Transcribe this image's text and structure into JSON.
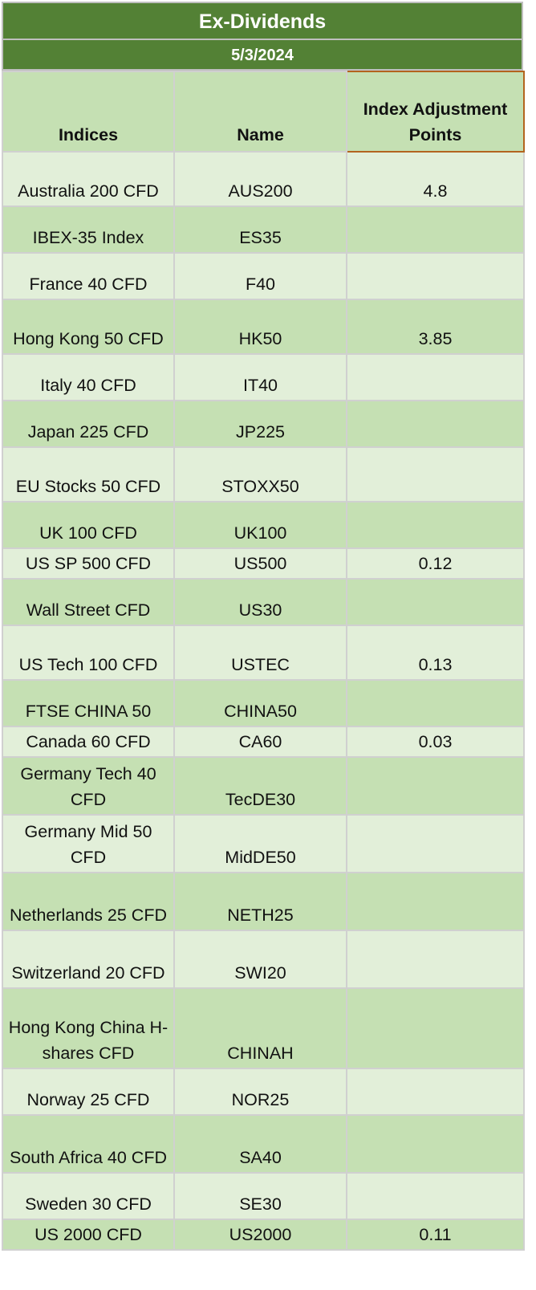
{
  "title": "Ex-Dividends",
  "date": "5/3/2024",
  "headers": {
    "indices": "Indices",
    "name": "Name",
    "adjustment": "Index Adjustment Points"
  },
  "rows": [
    {
      "index": "Australia 200 CFD",
      "name": "AUS200",
      "points": "4.8"
    },
    {
      "index": "IBEX-35 Index",
      "name": "ES35",
      "points": ""
    },
    {
      "index": "France 40 CFD",
      "name": "F40",
      "points": ""
    },
    {
      "index": "Hong Kong 50 CFD",
      "name": "HK50",
      "points": "3.85"
    },
    {
      "index": "Italy 40 CFD",
      "name": "IT40",
      "points": ""
    },
    {
      "index": "Japan 225 CFD",
      "name": "JP225",
      "points": ""
    },
    {
      "index": "EU Stocks 50 CFD",
      "name": "STOXX50",
      "points": ""
    },
    {
      "index": "UK 100 CFD",
      "name": "UK100",
      "points": ""
    },
    {
      "index": "US SP 500 CFD",
      "name": "US500",
      "points": "0.12"
    },
    {
      "index": "Wall Street CFD",
      "name": "US30",
      "points": ""
    },
    {
      "index": "US Tech 100 CFD",
      "name": "USTEC",
      "points": "0.13"
    },
    {
      "index": "FTSE CHINA 50",
      "name": "CHINA50",
      "points": ""
    },
    {
      "index": "Canada 60 CFD",
      "name": "CA60",
      "points": "0.03"
    },
    {
      "index": "Germany Tech 40 CFD",
      "name": "TecDE30",
      "points": ""
    },
    {
      "index": "Germany Mid 50 CFD",
      "name": "MidDE50",
      "points": ""
    },
    {
      "index": "Netherlands 25 CFD",
      "name": "NETH25",
      "points": ""
    },
    {
      "index": "Switzerland 20 CFD",
      "name": "SWI20",
      "points": ""
    },
    {
      "index": "Hong Kong China H-shares CFD",
      "name": "CHINAH",
      "points": ""
    },
    {
      "index": "Norway 25 CFD",
      "name": "NOR25",
      "points": ""
    },
    {
      "index": "South Africa 40 CFD",
      "name": "SA40",
      "points": ""
    },
    {
      "index": "Sweden 30 CFD",
      "name": "SE30",
      "points": ""
    },
    {
      "index": "US 2000 CFD",
      "name": "US2000",
      "points": "0.11"
    }
  ]
}
